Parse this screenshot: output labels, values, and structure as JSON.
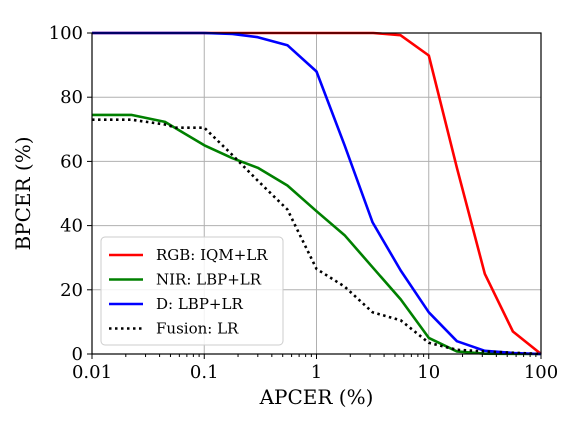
{
  "chart_data": {
    "type": "line",
    "title": "",
    "xlabel": "APCER (%)",
    "ylabel": "BPCER (%)",
    "xscale": "log",
    "xlim": [
      0.01,
      100
    ],
    "ylim": [
      0,
      100
    ],
    "xticks": [
      0.01,
      0.1,
      1,
      10,
      100
    ],
    "xtick_labels": [
      "0.01",
      "0.1",
      "1",
      "10",
      "100"
    ],
    "yticks": [
      0,
      20,
      40,
      60,
      80,
      100
    ],
    "ytick_labels": [
      "0",
      "20",
      "40",
      "60",
      "80",
      "100"
    ],
    "grid": true,
    "legend_position": "lower-left",
    "series": [
      {
        "name": "RGB: IQM+LR",
        "color": "#ff0000",
        "style": "solid",
        "x": [
          0.01,
          0.1,
          0.5,
          1,
          3.2,
          5.6,
          10,
          17.8,
          31.6,
          56.2,
          100
        ],
        "y": [
          100,
          100,
          100,
          100,
          100,
          99.3,
          93,
          58,
          25,
          7,
          0
        ]
      },
      {
        "name": "NIR: LBP+LR",
        "color": "#008000",
        "style": "solid",
        "x": [
          0.01,
          0.0224,
          0.0447,
          0.1,
          0.178,
          0.3,
          0.55,
          1,
          1.78,
          3.16,
          5.62,
          10,
          17.8,
          31.6,
          100
        ],
        "y": [
          74.5,
          74.5,
          72.3,
          65,
          61,
          58,
          52.5,
          44.5,
          37,
          27,
          17,
          5,
          0.8,
          0.1,
          0
        ]
      },
      {
        "name": "D: LBP+LR",
        "color": "#0000ff",
        "style": "solid",
        "x": [
          0.01,
          0.1,
          0.178,
          0.3,
          0.55,
          1,
          1.78,
          3.16,
          5.62,
          10,
          17.8,
          31.6,
          56.2,
          100
        ],
        "y": [
          100,
          100,
          99.7,
          98.7,
          96.2,
          88,
          65,
          41,
          26,
          13,
          4,
          1,
          0.3,
          0
        ]
      },
      {
        "name": "Fusion: LR",
        "color": "#000000",
        "style": "dotted",
        "x": [
          0.01,
          0.0224,
          0.0447,
          0.0562,
          0.1,
          0.178,
          0.3,
          0.55,
          1,
          1.78,
          3.16,
          5.62,
          10,
          17.8,
          31.6,
          100
        ],
        "y": [
          73,
          73,
          71.5,
          70.5,
          70.5,
          62,
          54,
          45,
          26.5,
          21,
          13,
          10.5,
          3.5,
          1.3,
          0.8,
          0
        ]
      }
    ]
  }
}
